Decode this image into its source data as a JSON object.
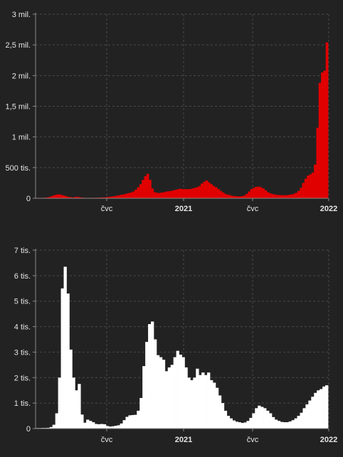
{
  "colors": {
    "background": "#222222",
    "cases": "#e00000",
    "deaths": "#ffffff",
    "text": "#e6e6e6"
  },
  "chart_data": [
    {
      "type": "bar",
      "title": "",
      "xlabel": "",
      "ylabel": "",
      "grid": true,
      "color": "#e00000",
      "x_range": [
        "2020-03",
        "2022-01"
      ],
      "ylim": [
        0,
        3000000
      ],
      "y_ticks": [
        {
          "value": 0,
          "label": "0"
        },
        {
          "value": 500000,
          "label": "500 tis."
        },
        {
          "value": 1000000,
          "label": "1 mil."
        },
        {
          "value": 1500000,
          "label": "1,5 mil."
        },
        {
          "value": 2000000,
          "label": "2 mil."
        },
        {
          "value": 2500000,
          "label": "2,5 mil."
        },
        {
          "value": 3000000,
          "label": "3 mil."
        }
      ],
      "x_ticks": [
        {
          "label": "čvc",
          "major": false
        },
        {
          "label": "2021",
          "major": true
        },
        {
          "label": "čvc",
          "major": false
        },
        {
          "label": "2022",
          "major": true
        }
      ],
      "values": [
        3000,
        4000,
        5000,
        8000,
        12000,
        18000,
        30000,
        45000,
        55000,
        65000,
        60000,
        50000,
        40000,
        28000,
        20000,
        15000,
        18000,
        25000,
        20000,
        12000,
        9000,
        7000,
        6000,
        7000,
        8000,
        9000,
        10000,
        12000,
        14000,
        16000,
        20000,
        25000,
        30000,
        35000,
        42000,
        50000,
        58000,
        65000,
        75000,
        85000,
        95000,
        110000,
        140000,
        180000,
        230000,
        300000,
        360000,
        400000,
        300000,
        160000,
        100000,
        90000,
        85000,
        95000,
        100000,
        110000,
        115000,
        120000,
        130000,
        140000,
        150000,
        155000,
        150000,
        150000,
        148000,
        150000,
        160000,
        170000,
        180000,
        200000,
        240000,
        270000,
        290000,
        260000,
        230000,
        200000,
        180000,
        150000,
        120000,
        95000,
        70000,
        60000,
        50000,
        40000,
        35000,
        32000,
        32000,
        35000,
        45000,
        70000,
        110000,
        150000,
        170000,
        185000,
        190000,
        180000,
        160000,
        130000,
        100000,
        80000,
        70000,
        60000,
        55000,
        52000,
        50000,
        50000,
        52000,
        56000,
        62000,
        72000,
        90000,
        120000,
        170000,
        250000,
        320000,
        370000,
        390000,
        420000,
        550000,
        1150000,
        1880000,
        2050000,
        2080000,
        2540000
      ]
    },
    {
      "type": "bar",
      "title": "",
      "xlabel": "",
      "ylabel": "",
      "grid": true,
      "color": "#ffffff",
      "x_range": [
        "2020-03",
        "2022-01"
      ],
      "ylim": [
        0,
        7000
      ],
      "y_ticks": [
        {
          "value": 0,
          "label": "0"
        },
        {
          "value": 1000,
          "label": "1 tis."
        },
        {
          "value": 2000,
          "label": "2 tis."
        },
        {
          "value": 3000,
          "label": "3 tis."
        },
        {
          "value": 4000,
          "label": "4 tis."
        },
        {
          "value": 5000,
          "label": "5 tis."
        },
        {
          "value": 6000,
          "label": "6 tis."
        },
        {
          "value": 7000,
          "label": "7 tis."
        }
      ],
      "x_ticks": [
        {
          "label": "čvc",
          "major": false
        },
        {
          "label": "2021",
          "major": true
        },
        {
          "label": "čvc",
          "major": false
        },
        {
          "label": "2022",
          "major": true
        }
      ],
      "values": [
        20,
        20,
        25,
        25,
        30,
        60,
        150,
        600,
        2000,
        5500,
        6350,
        5300,
        3100,
        2000,
        1500,
        1750,
        550,
        230,
        350,
        300,
        250,
        180,
        170,
        180,
        170,
        100,
        80,
        90,
        110,
        130,
        200,
        330,
        460,
        520,
        530,
        540,
        700,
        1200,
        2450,
        3400,
        4100,
        4200,
        3500,
        2880,
        2800,
        2700,
        2250,
        2400,
        2500,
        2800,
        3050,
        2900,
        2800,
        2400,
        2000,
        1900,
        2000,
        2350,
        2100,
        2200,
        2100,
        2200,
        1900,
        1800,
        1600,
        1300,
        1000,
        700,
        500,
        400,
        320,
        270,
        250,
        220,
        240,
        300,
        420,
        600,
        800,
        900,
        850,
        800,
        700,
        600,
        450,
        350,
        300,
        260,
        250,
        250,
        280,
        330,
        400,
        500,
        620,
        800,
        950,
        1100,
        1250,
        1400,
        1500,
        1550,
        1650,
        1700
      ]
    }
  ]
}
